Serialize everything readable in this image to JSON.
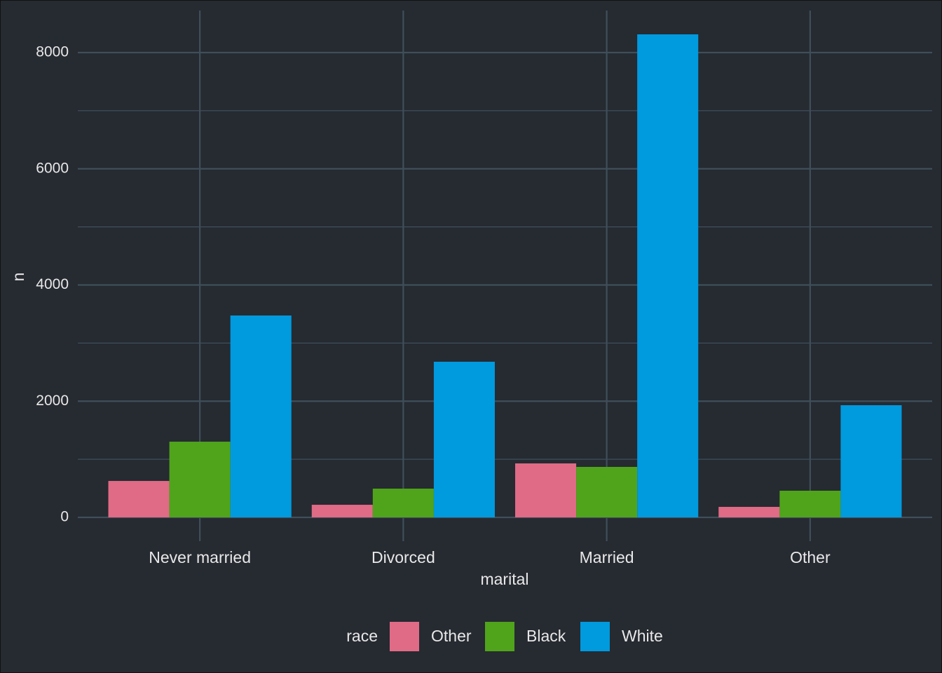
{
  "chart_data": {
    "type": "grouped-bar",
    "x_label": "marital",
    "y_label": "n",
    "categories": [
      "Never married",
      "Divorced",
      "Married",
      "Other"
    ],
    "series": [
      {
        "name": "Other",
        "color": "#e06b86",
        "values": [
          627,
          217,
          929,
          181
        ]
      },
      {
        "name": "Black",
        "color": "#50a41b",
        "values": [
          1303,
          495,
          869,
          459
        ]
      },
      {
        "name": "White",
        "color": "#009ade",
        "values": [
          3475,
          2679,
          8314,
          1931
        ]
      }
    ],
    "legend_title": "race",
    "legend_position": "bottom",
    "ylim": [
      -410,
      8724
    ],
    "yticks": [
      0,
      2000,
      4000,
      6000,
      8000
    ],
    "grid": true
  }
}
